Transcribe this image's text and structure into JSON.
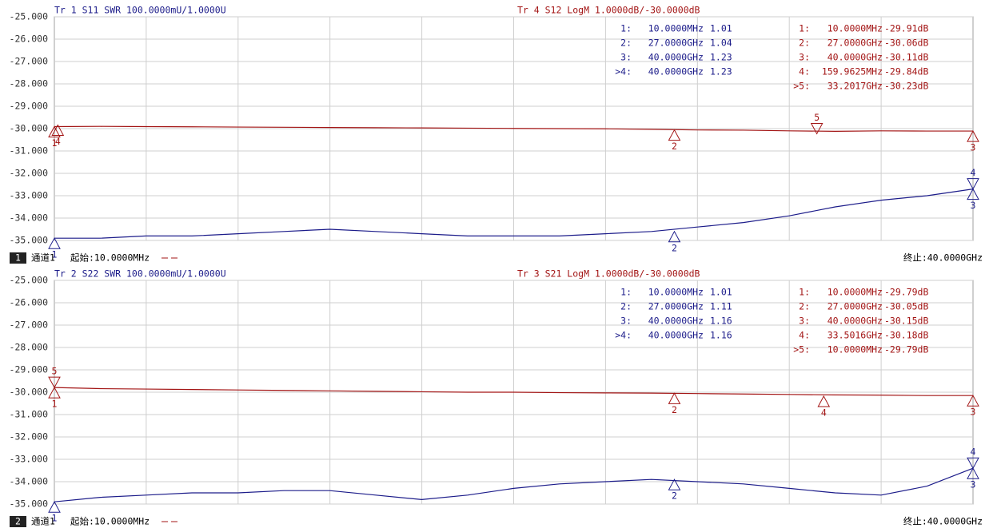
{
  "chart_data": [
    {
      "type": "line",
      "x": [
        0.01,
        2,
        4,
        6,
        8,
        10,
        12,
        14,
        16,
        18,
        20,
        22,
        24,
        26,
        28,
        30,
        32,
        34,
        36,
        38,
        40
      ],
      "xlim": [
        0.01,
        40
      ],
      "ylim": [
        -35,
        -25
      ],
      "y2lim": [
        1,
        2
      ],
      "yticks": [
        {
          "value": -25,
          "label": "-25.000"
        },
        {
          "value": -26,
          "label": "-26.000"
        },
        {
          "value": -27,
          "label": "-27.000"
        },
        {
          "value": -28,
          "label": "-28.000"
        },
        {
          "value": -29,
          "label": "-29.000"
        },
        {
          "value": -30,
          "label": "-30.000"
        },
        {
          "value": -31,
          "label": "-31.000"
        },
        {
          "value": -32,
          "label": "-32.000"
        },
        {
          "value": -33,
          "label": "-33.000"
        },
        {
          "value": -34,
          "label": "-34.000"
        },
        {
          "value": -35,
          "label": "-35.000"
        }
      ],
      "grid": true,
      "series": [
        {
          "name": "Tr 1  S11 SWR 100.0000mU/1.0000U",
          "color": "#1c1c8a",
          "axis": "y2",
          "values": [
            1.01,
            1.01,
            1.02,
            1.02,
            1.03,
            1.04,
            1.05,
            1.04,
            1.03,
            1.02,
            1.02,
            1.02,
            1.03,
            1.04,
            1.06,
            1.08,
            1.11,
            1.15,
            1.18,
            1.2,
            1.23
          ],
          "markers": [
            {
              "label": "1",
              "x": 0.01,
              "value": 1.01
            },
            {
              "label": "2",
              "x": 27,
              "value": 1.04
            },
            {
              "label": "3",
              "x": 40,
              "value": 1.23
            },
            {
              "label": "4",
              "x": 40,
              "value": 1.23
            }
          ],
          "readout": [
            [
              "1:",
              "10.0000MHz",
              "1.01"
            ],
            [
              "2:",
              "27.0000GHz",
              "1.04"
            ],
            [
              "3:",
              "40.0000GHz",
              "1.23"
            ],
            [
              ">4:",
              "40.0000GHz",
              "1.23"
            ]
          ]
        },
        {
          "name": "Tr 4  S12 LogM 1.0000dB/-30.0000dB",
          "color": "#a31515",
          "values": [
            -29.91,
            -29.9,
            -29.91,
            -29.92,
            -29.93,
            -29.94,
            -29.95,
            -29.96,
            -29.97,
            -29.98,
            -29.99,
            -30.0,
            -30.01,
            -30.03,
            -30.06,
            -30.07,
            -30.1,
            -30.12,
            -30.1,
            -30.11,
            -30.11
          ],
          "markers": [
            {
              "label": "1",
              "x": 0.01,
              "value": -29.91
            },
            {
              "label": "2",
              "x": 27,
              "value": -30.06
            },
            {
              "label": "3",
              "x": 40,
              "value": -30.11
            },
            {
              "label": "4",
              "x": 0.1599625,
              "value": -29.84
            },
            {
              "label": "5",
              "x": 33.2017,
              "value": -30.23
            }
          ],
          "readout": [
            [
              "1:",
              "10.0000MHz",
              "-29.91dB"
            ],
            [
              "2:",
              "27.0000GHz",
              "-30.06dB"
            ],
            [
              "3:",
              "40.0000GHz",
              "-30.11dB"
            ],
            [
              "4:",
              "159.9625MHz",
              "-29.84dB"
            ],
            [
              ">5:",
              "33.2017GHz",
              "-30.23dB"
            ]
          ]
        }
      ],
      "channel_badge": "1",
      "channel_label": "通道1",
      "start_label": "起始:10.0000MHz",
      "stop_label": "终止:40.0000GHz"
    },
    {
      "type": "line",
      "x": [
        0.01,
        2,
        4,
        6,
        8,
        10,
        12,
        14,
        16,
        18,
        20,
        22,
        24,
        26,
        28,
        30,
        32,
        34,
        36,
        38,
        40
      ],
      "xlim": [
        0.01,
        40
      ],
      "ylim": [
        -35,
        -25
      ],
      "y2lim": [
        1,
        2
      ],
      "yticks": [
        {
          "value": -25,
          "label": "-25.000"
        },
        {
          "value": -26,
          "label": "-26.000"
        },
        {
          "value": -27,
          "label": "-27.000"
        },
        {
          "value": -28,
          "label": "-28.000"
        },
        {
          "value": -29,
          "label": "-29.000"
        },
        {
          "value": -30,
          "label": "-30.000"
        },
        {
          "value": -31,
          "label": "-31.000"
        },
        {
          "value": -32,
          "label": "-32.000"
        },
        {
          "value": -33,
          "label": "-33.000"
        },
        {
          "value": -34,
          "label": "-34.000"
        },
        {
          "value": -35,
          "label": "-35.000"
        }
      ],
      "grid": true,
      "series": [
        {
          "name": "Tr 2  S22 SWR 100.0000mU/1.0000U",
          "color": "#1c1c8a",
          "axis": "y2",
          "values": [
            1.01,
            1.03,
            1.04,
            1.05,
            1.05,
            1.06,
            1.06,
            1.04,
            1.02,
            1.04,
            1.07,
            1.09,
            1.1,
            1.11,
            1.1,
            1.09,
            1.07,
            1.05,
            1.04,
            1.08,
            1.16
          ],
          "markers": [
            {
              "label": "1",
              "x": 0.01,
              "value": 1.01
            },
            {
              "label": "2",
              "x": 27,
              "value": 1.11
            },
            {
              "label": "3",
              "x": 40,
              "value": 1.16
            },
            {
              "label": "4",
              "x": 40,
              "value": 1.16
            }
          ],
          "readout": [
            [
              "1:",
              "10.0000MHz",
              "1.01"
            ],
            [
              "2:",
              "27.0000GHz",
              "1.11"
            ],
            [
              "3:",
              "40.0000GHz",
              "1.16"
            ],
            [
              ">4:",
              "40.0000GHz",
              "1.16"
            ]
          ]
        },
        {
          "name": "Tr 3  S21 LogM 1.0000dB/-30.0000dB",
          "color": "#a31515",
          "values": [
            -29.79,
            -29.84,
            -29.86,
            -29.88,
            -29.9,
            -29.92,
            -29.94,
            -29.96,
            -29.98,
            -30.0,
            -30.0,
            -30.02,
            -30.03,
            -30.04,
            -30.06,
            -30.08,
            -30.1,
            -30.12,
            -30.13,
            -30.15,
            -30.15
          ],
          "markers": [
            {
              "label": "1",
              "x": 0.01,
              "value": -29.79
            },
            {
              "label": "2",
              "x": 27,
              "value": -30.05
            },
            {
              "label": "3",
              "x": 40,
              "value": -30.15
            },
            {
              "label": "4",
              "x": 33.5016,
              "value": -30.18
            },
            {
              "label": "5",
              "x": 0.01,
              "value": -29.79
            }
          ],
          "readout": [
            [
              "1:",
              "10.0000MHz",
              "-29.79dB"
            ],
            [
              "2:",
              "27.0000GHz",
              "-30.05dB"
            ],
            [
              "3:",
              "40.0000GHz",
              "-30.15dB"
            ],
            [
              "4:",
              "33.5016GHz",
              "-30.18dB"
            ],
            [
              ">5:",
              "10.0000MHz",
              "-29.79dB"
            ]
          ]
        }
      ],
      "channel_badge": "2",
      "channel_label": "通道1",
      "start_label": "起始:10.0000MHz",
      "stop_label": "终止:40.0000GHz"
    }
  ]
}
